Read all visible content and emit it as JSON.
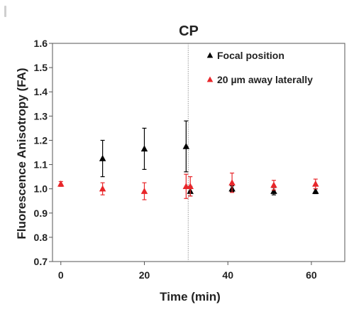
{
  "chart_data": {
    "type": "scatter",
    "title": "CP",
    "xlabel": "Time (min)",
    "ylabel": "Fluorescence Anisotropy (FA)",
    "xlim": [
      -2,
      68
    ],
    "ylim": [
      0.7,
      1.6
    ],
    "xticks": [
      "0",
      "20",
      "40",
      "60"
    ],
    "yticks": [
      "0.7",
      "0.8",
      "0.9",
      "1.0",
      "1.1",
      "1.2",
      "1.3",
      "1.4",
      "1.5",
      "1.6"
    ],
    "grid": false,
    "legend_position": "top-right",
    "vertical_reference_line_x": 30.5,
    "series": [
      {
        "name": "Focal position",
        "color": "#000000",
        "marker": "triangle",
        "x": [
          10,
          20,
          30,
          31,
          41,
          51,
          61
        ],
        "y": [
          1.125,
          1.165,
          1.175,
          0.99,
          1.0,
          0.99,
          0.99
        ],
        "error": [
          0.075,
          0.085,
          0.105,
          0.02,
          0.012,
          0.015,
          0.01
        ]
      },
      {
        "name": "20 µm away laterally",
        "color": "#e8262a",
        "marker": "triangle",
        "x": [
          0,
          10,
          20,
          30,
          31,
          41,
          51,
          61
        ],
        "y": [
          1.02,
          1.0,
          0.99,
          1.01,
          1.01,
          1.025,
          1.015,
          1.02
        ],
        "error": [
          0.01,
          0.025,
          0.035,
          0.05,
          0.04,
          0.04,
          0.02,
          0.02
        ]
      }
    ]
  }
}
